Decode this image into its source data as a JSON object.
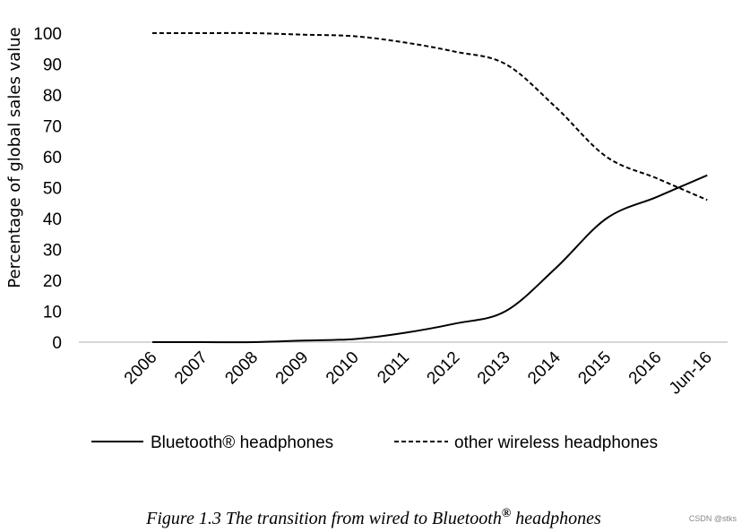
{
  "chart_data": {
    "type": "line",
    "categories": [
      "2006",
      "2007",
      "2008",
      "2009",
      "2010",
      "2011",
      "2012",
      "2013",
      "2014",
      "2015",
      "2016",
      "Jun-16"
    ],
    "series": [
      {
        "name": "Bluetooth® headphones",
        "style": "solid",
        "values": [
          0,
          0,
          0,
          0.5,
          1,
          3,
          6,
          10,
          24,
          40,
          47,
          54
        ]
      },
      {
        "name": "other wireless headphones",
        "style": "dashed",
        "values": [
          100,
          100,
          100,
          99.5,
          99,
          97,
          94,
          90,
          76,
          60,
          53,
          46
        ]
      }
    ],
    "ylabel": "Percentage of global sales value",
    "xlabel": "",
    "title": "",
    "ylim": [
      0,
      100
    ],
    "yticks": [
      "0",
      "10",
      "20",
      "30",
      "40",
      "50",
      "60",
      "70",
      "80",
      "90",
      "100"
    ],
    "legend_position": "bottom",
    "grid": false
  },
  "caption": {
    "lead": "Figure 1.3  The transition from wired to Bluetooth",
    "superscript": "®",
    "tail": " headphones"
  },
  "watermark": "CSDN @stks",
  "colors": {
    "line": "#000000",
    "axis": "#c8c8c8"
  }
}
